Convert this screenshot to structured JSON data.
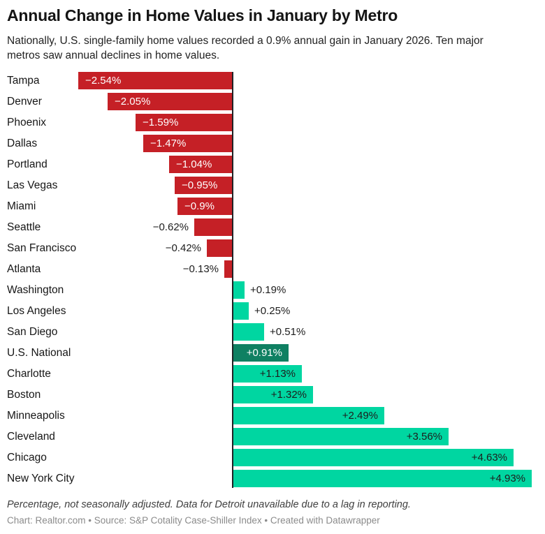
{
  "header": {
    "title": "Annual Change in Home Values in January by Metro",
    "subtitle": "Nationally, U.S. single-family home values recorded a 0.9% annual gain in January 2026. Ten major metros saw annual declines in home values."
  },
  "footer": {
    "note": "Percentage, not seasonally adjusted. Data for Detroit unavailable due to a lag in reporting.",
    "credit_chart": "Chart: Realtor.com",
    "credit_source": "Source: S&P Cotality Case-Shiller Index",
    "credit_tool": "Created with Datawrapper",
    "separator": " • "
  },
  "chart_data": {
    "type": "bar",
    "orientation": "horizontal",
    "title": "Annual Change in Home Values in January by Metro",
    "xlabel": "",
    "ylabel": "",
    "value_suffix": "%",
    "xlim": [
      -2.6,
      5.0
    ],
    "grid": false,
    "legend": false,
    "colors": {
      "negative": "#c52026",
      "positive": "#00d6a1",
      "highlight": "#0f8062",
      "axis": "#202124"
    },
    "categories": [
      "Tampa",
      "Denver",
      "Phoenix",
      "Dallas",
      "Portland",
      "Las Vegas",
      "Miami",
      "Seattle",
      "San Francisco",
      "Atlanta",
      "Washington",
      "Los Angeles",
      "San Diego",
      "U.S. National",
      "Charlotte",
      "Boston",
      "Minneapolis",
      "Cleveland",
      "Chicago",
      "New York City"
    ],
    "values": [
      -2.54,
      -2.05,
      -1.59,
      -1.47,
      -1.04,
      -0.95,
      -0.9,
      -0.62,
      -0.42,
      -0.13,
      0.19,
      0.25,
      0.51,
      0.91,
      1.13,
      1.32,
      2.49,
      3.56,
      4.63,
      4.93
    ],
    "rows": [
      {
        "metro": "Tampa",
        "value": -2.54,
        "label": "−2.54%",
        "style": "neg-inside"
      },
      {
        "metro": "Denver",
        "value": -2.05,
        "label": "−2.05%",
        "style": "neg-inside"
      },
      {
        "metro": "Phoenix",
        "value": -1.59,
        "label": "−1.59%",
        "style": "neg-inside"
      },
      {
        "metro": "Dallas",
        "value": -1.47,
        "label": "−1.47%",
        "style": "neg-inside"
      },
      {
        "metro": "Portland",
        "value": -1.04,
        "label": "−1.04%",
        "style": "neg-inside"
      },
      {
        "metro": "Las Vegas",
        "value": -0.95,
        "label": "−0.95%",
        "style": "neg-inside"
      },
      {
        "metro": "Miami",
        "value": -0.9,
        "label": "−0.9%",
        "style": "neg-inside"
      },
      {
        "metro": "Seattle",
        "value": -0.62,
        "label": "−0.62%",
        "style": "neg-outside"
      },
      {
        "metro": "San Francisco",
        "value": -0.42,
        "label": "−0.42%",
        "style": "neg-outside"
      },
      {
        "metro": "Atlanta",
        "value": -0.13,
        "label": "−0.13%",
        "style": "neg-outside"
      },
      {
        "metro": "Washington",
        "value": 0.19,
        "label": "+0.19%",
        "style": "pos-outside"
      },
      {
        "metro": "Los Angeles",
        "value": 0.25,
        "label": "+0.25%",
        "style": "pos-outside"
      },
      {
        "metro": "San Diego",
        "value": 0.51,
        "label": "+0.51%",
        "style": "pos-outside"
      },
      {
        "metro": "U.S. National",
        "value": 0.91,
        "label": "+0.91%",
        "style": "pos-inside-highlight"
      },
      {
        "metro": "Charlotte",
        "value": 1.13,
        "label": "+1.13%",
        "style": "pos-inside"
      },
      {
        "metro": "Boston",
        "value": 1.32,
        "label": "+1.32%",
        "style": "pos-inside"
      },
      {
        "metro": "Minneapolis",
        "value": 2.49,
        "label": "+2.49%",
        "style": "pos-inside"
      },
      {
        "metro": "Cleveland",
        "value": 3.56,
        "label": "+3.56%",
        "style": "pos-inside"
      },
      {
        "metro": "Chicago",
        "value": 4.63,
        "label": "+4.63%",
        "style": "pos-inside"
      },
      {
        "metro": "New York City",
        "value": 4.93,
        "label": "+4.93%",
        "style": "pos-inside"
      }
    ]
  }
}
